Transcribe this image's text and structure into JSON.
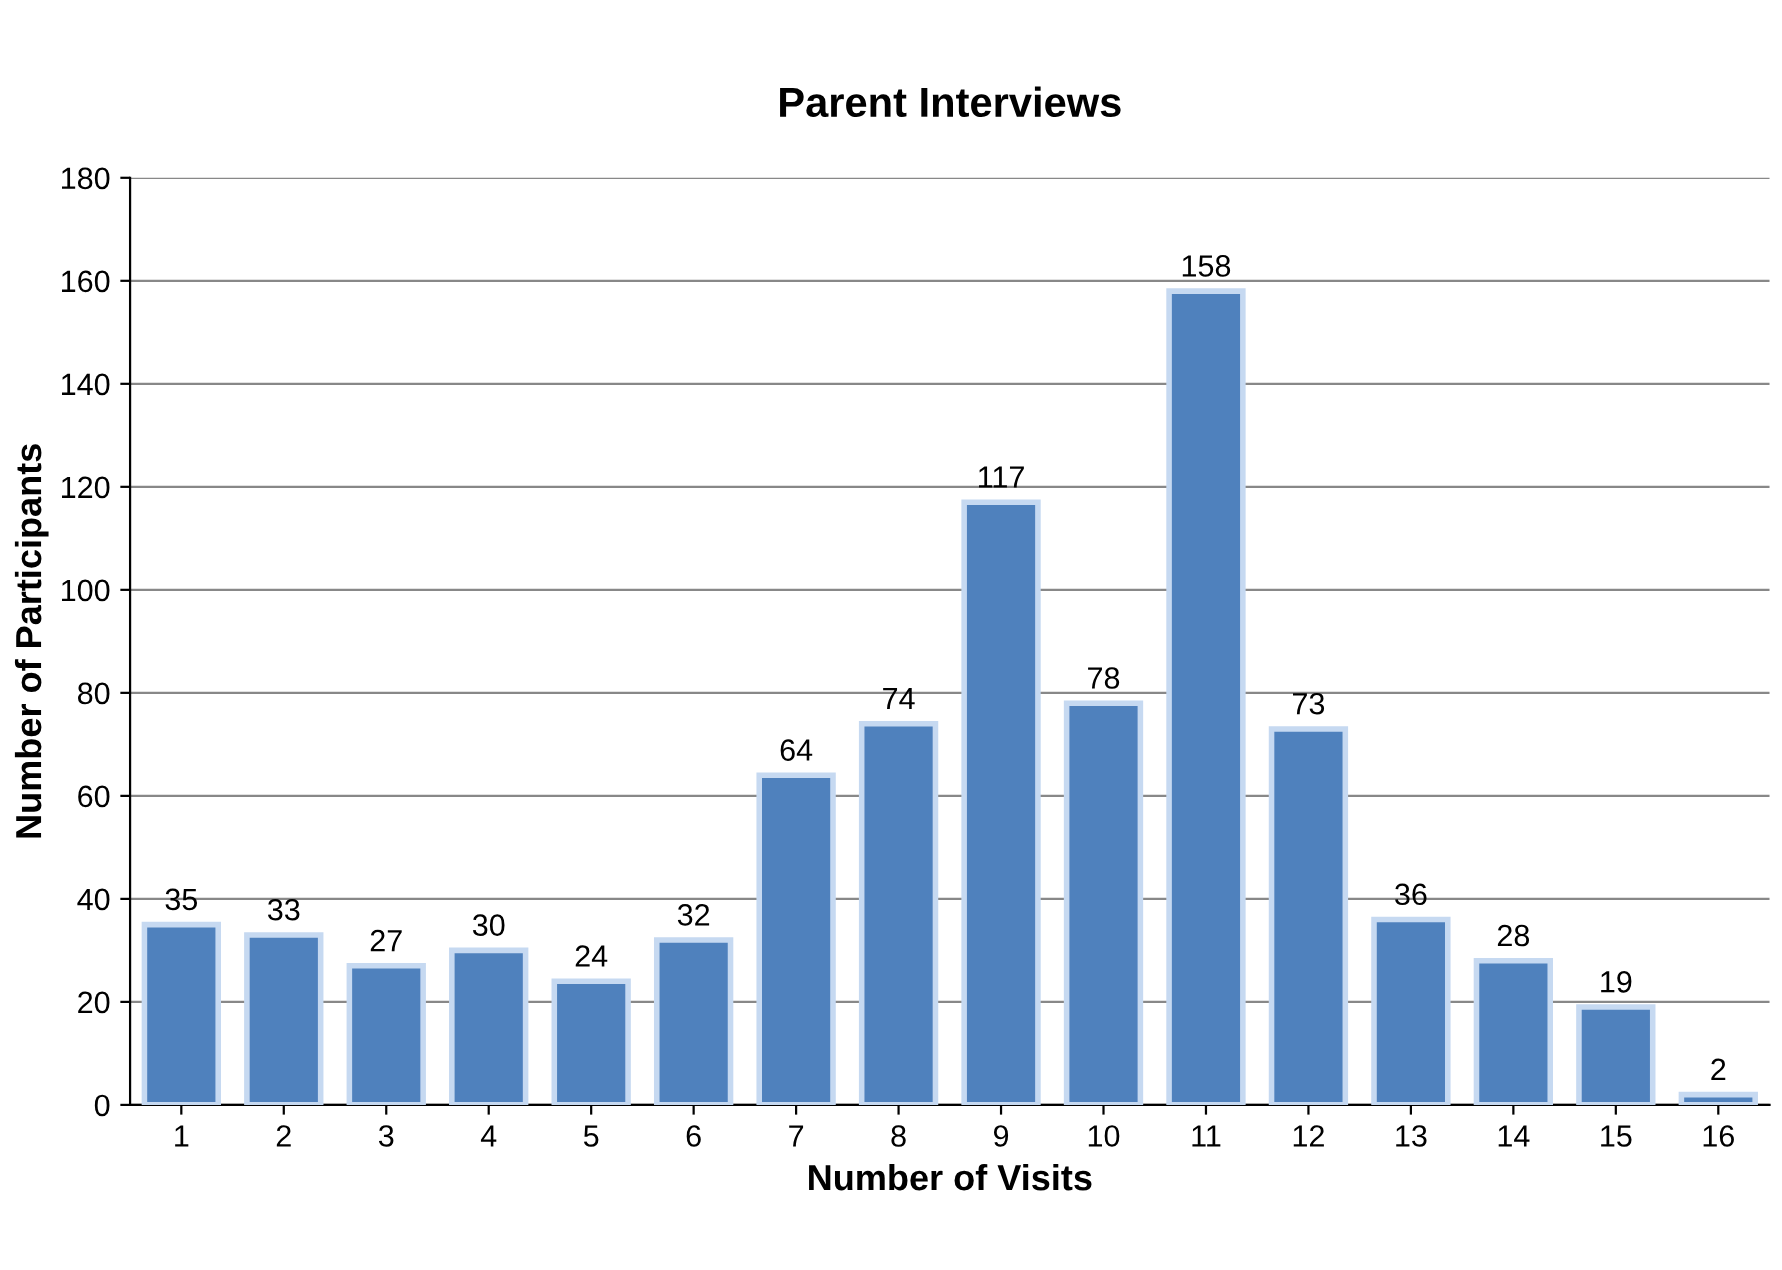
{
  "chart_data": {
    "type": "bar",
    "title": "Parent Interviews",
    "xlabel": "Number of Visits",
    "ylabel": "Number of Participants",
    "categories": [
      "1",
      "2",
      "3",
      "4",
      "5",
      "6",
      "7",
      "8",
      "9",
      "10",
      "11",
      "12",
      "13",
      "14",
      "15",
      "16"
    ],
    "values": [
      35,
      33,
      27,
      30,
      24,
      32,
      64,
      74,
      117,
      78,
      158,
      73,
      36,
      28,
      19,
      2
    ],
    "color": "#4f81bd",
    "ylim": [
      0,
      180
    ],
    "yticks": [
      0,
      20,
      40,
      60,
      80,
      100,
      120,
      140,
      160,
      180
    ],
    "grid": "y",
    "data_labels": true
  }
}
